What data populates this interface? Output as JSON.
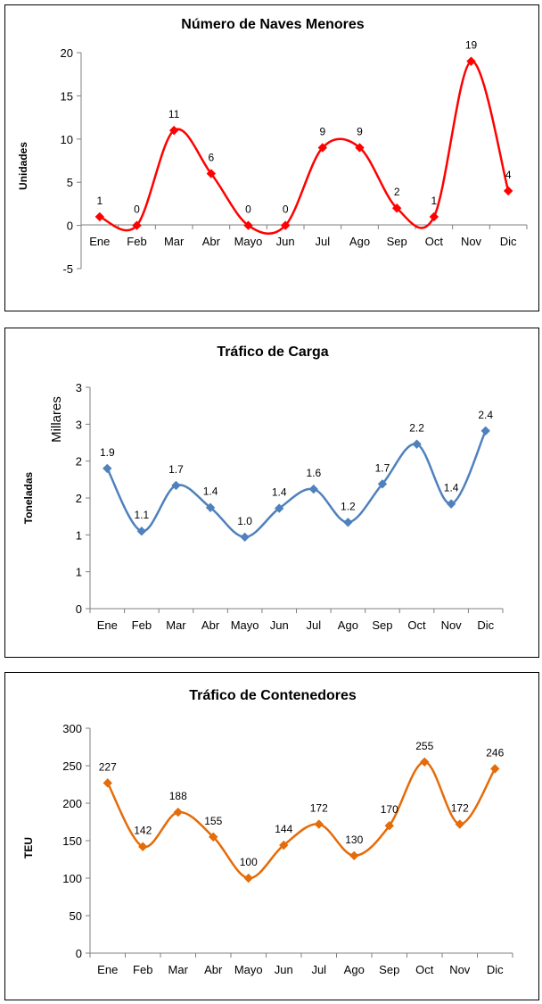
{
  "chart_data": [
    {
      "type": "line",
      "title": "Número de Naves Menores",
      "ylabel": "Unidades",
      "ylabel_secondary": "",
      "categories": [
        "Ene",
        "Feb",
        "Mar",
        "Abr",
        "Mayo",
        "Jun",
        "Jul",
        "Ago",
        "Sep",
        "Oct",
        "Nov",
        "Dic"
      ],
      "values": [
        1,
        0,
        11,
        6,
        0,
        0,
        9,
        9,
        2,
        1,
        19,
        4
      ],
      "labels": [
        "1",
        "0",
        "11",
        "6",
        "0",
        "0",
        "9",
        "9",
        "2",
        "1",
        "19",
        "4"
      ],
      "ylim": [
        -5,
        20
      ],
      "yticks": [
        -5,
        0,
        5,
        10,
        15,
        20
      ],
      "ytick_labels": [
        "-5",
        "0",
        "5",
        "10",
        "15",
        "20"
      ],
      "color": "#ff0000",
      "smooth": true,
      "grid": false
    },
    {
      "type": "line",
      "title": "Tráfico de Carga",
      "ylabel": "Toneladas",
      "ylabel_secondary": "Millares",
      "categories": [
        "Ene",
        "Feb",
        "Mar",
        "Abr",
        "Mayo",
        "Jun",
        "Jul",
        "Ago",
        "Sep",
        "Oct",
        "Nov",
        "Dic"
      ],
      "values": [
        1.9,
        1.05,
        1.67,
        1.37,
        0.97,
        1.36,
        1.62,
        1.17,
        1.69,
        2.23,
        1.42,
        2.41
      ],
      "labels": [
        "1.9",
        "1.1",
        "1.7",
        "1.4",
        "1.0",
        "1.4",
        "1.6",
        "1.2",
        "1.7",
        "2.2",
        "1.4",
        "2.4"
      ],
      "ylim": [
        0,
        3
      ],
      "yticks": [
        0,
        0.5,
        1,
        1.5,
        2,
        2.5,
        3
      ],
      "ytick_labels": [
        "0",
        "1",
        "1",
        "2",
        "2",
        "3",
        "3"
      ],
      "color": "#4f81bd",
      "smooth": true,
      "grid": false
    },
    {
      "type": "line",
      "title": "Tráfico de Contenedores",
      "ylabel": "TEU",
      "ylabel_secondary": "",
      "categories": [
        "Ene",
        "Feb",
        "Mar",
        "Abr",
        "Mayo",
        "Jun",
        "Jul",
        "Ago",
        "Sep",
        "Oct",
        "Nov",
        "Dic"
      ],
      "values": [
        227,
        142,
        188,
        155,
        100,
        144,
        172,
        130,
        170,
        255,
        172,
        246
      ],
      "labels": [
        "227",
        "142",
        "188",
        "155",
        "100",
        "144",
        "172",
        "130",
        "170",
        "255",
        "172",
        "246"
      ],
      "ylim": [
        0,
        300
      ],
      "yticks": [
        0,
        50,
        100,
        150,
        200,
        250,
        300
      ],
      "ytick_labels": [
        "0",
        "50",
        "100",
        "150",
        "200",
        "250",
        "300"
      ],
      "color": "#e46c0a",
      "smooth": true,
      "grid": false
    }
  ]
}
